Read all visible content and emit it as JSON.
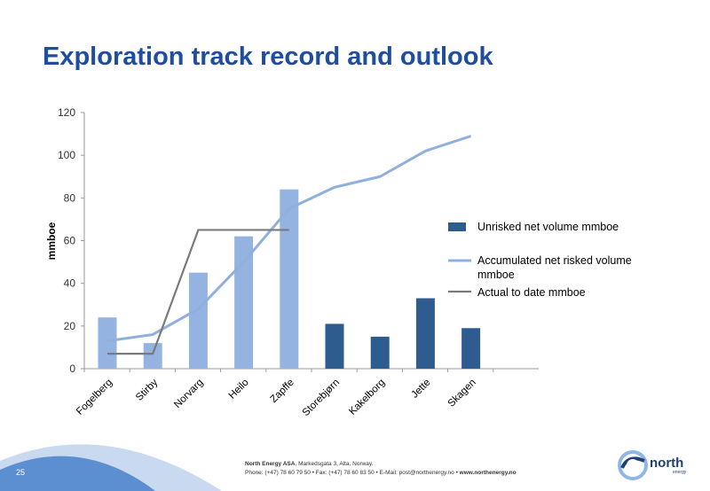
{
  "slide": {
    "title": "Exploration track record and outlook",
    "page_number": "25"
  },
  "footer": {
    "company": "North Energy ASA",
    "address": ", Markedsgata 3, Alta, Norway.",
    "contact_line": "Phone: (+47) 78 60 79 50  • Fax: (+47) 78 60 83 50  • E-Mail: post@northenergy.no  • ",
    "website": "www.northenergy.no",
    "logo_text": "north",
    "logo_subtext": "energy"
  },
  "colors": {
    "title": "#1f4ea1",
    "bar_light": "#95b3e0",
    "bar_dark": "#2e5c8f",
    "accumulated_line": "#8fb0dc",
    "actual_line": "#7a7a7a"
  },
  "chart_data": {
    "type": "bar",
    "ylabel": "mmboe",
    "ylim": [
      0,
      120
    ],
    "yticks": [
      0,
      20,
      40,
      60,
      80,
      100,
      120
    ],
    "categories": [
      "Fogelberg",
      "Stirby",
      "Norvarg",
      "Heilo",
      "Zapffe",
      "Storebjørn",
      "Kakelborg",
      "Jette",
      "Skagen"
    ],
    "series": [
      {
        "name": "Unrisked net volume mmboe",
        "type": "bar",
        "values": [
          24,
          12,
          45,
          62,
          84,
          21,
          15,
          33,
          19
        ],
        "shade": [
          "light",
          "light",
          "light",
          "light",
          "light",
          "dark",
          "dark",
          "dark",
          "dark"
        ]
      },
      {
        "name": "Accumulated net risked volume mmboe",
        "type": "line",
        "values": [
          13,
          16,
          28,
          50,
          75,
          85,
          90,
          102,
          109
        ]
      },
      {
        "name": "Actual to date mmboe",
        "type": "line",
        "values": [
          7,
          7,
          65,
          65,
          65,
          null,
          null,
          null,
          null
        ]
      }
    ],
    "legend": "right",
    "grid": false
  }
}
